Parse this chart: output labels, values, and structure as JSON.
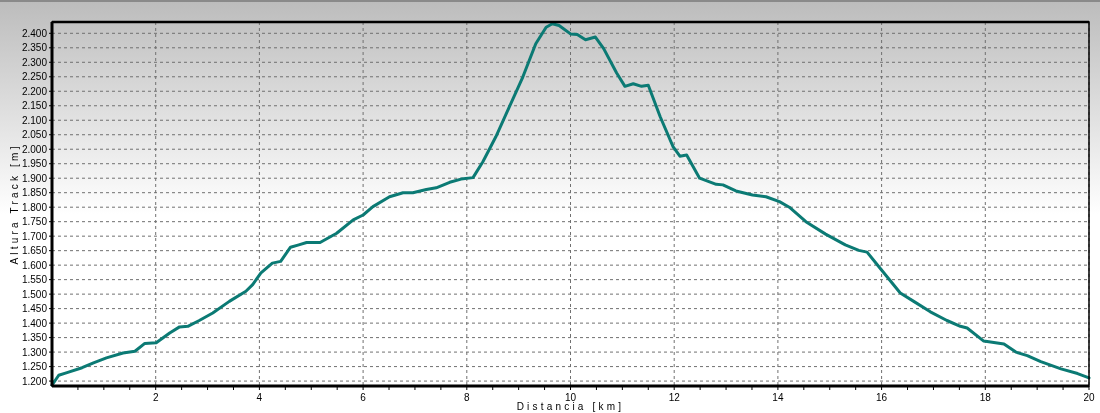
{
  "chart_data": {
    "type": "line",
    "xlabel": "Distancia [km]",
    "ylabel": "Altura Track [m]",
    "xlim": [
      0,
      20
    ],
    "ylim": [
      1183,
      2439
    ],
    "xticks": [
      {
        "value": 0.5,
        "label": null
      },
      {
        "value": 1,
        "label": null
      },
      {
        "value": 1.5,
        "label": null
      },
      2,
      {
        "value": 2.5,
        "label": null
      },
      {
        "value": 3,
        "label": null
      },
      {
        "value": 3.5,
        "label": null
      },
      4,
      {
        "value": 4.5,
        "label": null
      },
      {
        "value": 5,
        "label": null
      },
      {
        "value": 5.5,
        "label": null
      },
      6,
      {
        "value": 6.5,
        "label": null
      },
      {
        "value": 7,
        "label": null
      },
      {
        "value": 7.5,
        "label": null
      },
      8,
      {
        "value": 8.5,
        "label": null
      },
      {
        "value": 9,
        "label": null
      },
      {
        "value": 9.5,
        "label": null
      },
      10,
      {
        "value": 10.5,
        "label": null
      },
      {
        "value": 11,
        "label": null
      },
      {
        "value": 11.5,
        "label": null
      },
      12,
      {
        "value": 12.5,
        "label": null
      },
      {
        "value": 13,
        "label": null
      },
      {
        "value": 13.5,
        "label": null
      },
      14,
      {
        "value": 14.5,
        "label": null
      },
      {
        "value": 15,
        "label": null
      },
      {
        "value": 15.5,
        "label": null
      },
      16,
      {
        "value": 16.5,
        "label": null
      },
      {
        "value": 17,
        "label": null
      },
      {
        "value": 17.5,
        "label": null
      },
      18,
      {
        "value": 18.5,
        "label": null
      },
      {
        "value": 19,
        "label": null
      },
      {
        "value": 19.5,
        "label": null
      },
      20
    ],
    "yticks": [
      {
        "value": 1200,
        "label": "1.200"
      },
      {
        "value": 1250,
        "label": "1.250"
      },
      {
        "value": 1300,
        "label": "1.300"
      },
      {
        "value": 1350,
        "label": "1.350"
      },
      {
        "value": 1400,
        "label": "1.400"
      },
      {
        "value": 1450,
        "label": "1.450"
      },
      {
        "value": 1500,
        "label": "1.500"
      },
      {
        "value": 1550,
        "label": "1.550"
      },
      {
        "value": 1600,
        "label": "1.600"
      },
      {
        "value": 1650,
        "label": "1.650"
      },
      {
        "value": 1700,
        "label": "1.700"
      },
      {
        "value": 1750,
        "label": "1.750"
      },
      {
        "value": 1800,
        "label": "1.800"
      },
      {
        "value": 1850,
        "label": "1.850"
      },
      {
        "value": 1900,
        "label": "1.900"
      },
      {
        "value": 1950,
        "label": "1.950"
      },
      {
        "value": 2000,
        "label": "2.000"
      },
      {
        "value": 2050,
        "label": "2.050"
      },
      {
        "value": 2100,
        "label": "2.100"
      },
      {
        "value": 2150,
        "label": "2.150"
      },
      {
        "value": 2200,
        "label": "2.200"
      },
      {
        "value": 2250,
        "label": "2.250"
      },
      {
        "value": 2300,
        "label": "2.300"
      },
      {
        "value": 2350,
        "label": "2.350"
      },
      {
        "value": 2400,
        "label": "2.400"
      }
    ],
    "grid": true,
    "series": [
      {
        "color": "#0b7a74",
        "x": [
          0,
          0.13,
          0.29,
          0.58,
          0.8,
          1.05,
          1.37,
          1.6,
          1.79,
          2.01,
          2.27,
          2.46,
          2.62,
          2.84,
          3.1,
          3.42,
          3.74,
          3.87,
          4.03,
          4.25,
          4.41,
          4.6,
          4.76,
          4.91,
          5.17,
          5.49,
          5.81,
          6.0,
          6.19,
          6.51,
          6.77,
          6.96,
          7.22,
          7.41,
          7.67,
          7.89,
          8.12,
          8.31,
          8.56,
          8.82,
          9.08,
          9.33,
          9.53,
          9.65,
          9.78,
          10.0,
          10.13,
          10.29,
          10.48,
          10.64,
          10.89,
          11.05,
          11.21,
          11.37,
          11.5,
          11.73,
          11.98,
          12.11,
          12.24,
          12.49,
          12.81,
          12.94,
          13.19,
          13.51,
          13.77,
          14.03,
          14.22,
          14.54,
          14.92,
          15.3,
          15.56,
          15.72,
          15.94,
          16.36,
          16.62,
          16.94,
          17.26,
          17.52,
          17.65,
          17.97,
          18.36,
          18.59,
          18.81,
          19.07,
          19.46,
          19.78,
          20.0
        ],
        "values": [
          1186,
          1220,
          1229,
          1246,
          1263,
          1280,
          1297,
          1303,
          1330,
          1332,
          1366,
          1387,
          1389,
          1409,
          1435,
          1475,
          1510,
          1533,
          1573,
          1607,
          1613,
          1662,
          1670,
          1678,
          1678,
          1710,
          1756,
          1773,
          1802,
          1836,
          1850,
          1850,
          1861,
          1867,
          1886,
          1897,
          1902,
          1957,
          2043,
          2146,
          2249,
          2364,
          2421,
          2433,
          2427,
          2398,
          2396,
          2378,
          2387,
          2347,
          2263,
          2217,
          2226,
          2217,
          2221,
          2112,
          2008,
          1976,
          1980,
          1900,
          1879,
          1877,
          1856,
          1842,
          1836,
          1819,
          1800,
          1750,
          1707,
          1670,
          1651,
          1645,
          1596,
          1504,
          1475,
          1439,
          1409,
          1389,
          1383,
          1338,
          1328,
          1300,
          1288,
          1267,
          1242,
          1226,
          1211
        ]
      }
    ]
  }
}
